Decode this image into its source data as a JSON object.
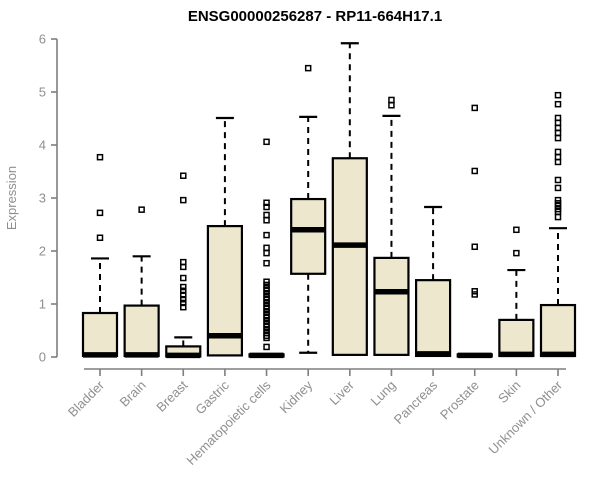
{
  "chart_data": {
    "type": "boxplot",
    "title": "ENSG00000256287 - RP11-664H17.1",
    "ylabel": "Expression",
    "xlabel": "",
    "ylim": [
      0,
      6
    ],
    "yticks": [
      0,
      1,
      2,
      3,
      4,
      5,
      6
    ],
    "grid": false,
    "legend": false,
    "categories": [
      "Bladder",
      "Brain",
      "Breast",
      "Gastric",
      "Hematopoietic cells",
      "Kidney",
      "Liver",
      "Lung",
      "Pancreas",
      "Prostate",
      "Skin",
      "Unknown / Other"
    ],
    "series": [
      {
        "category": "Bladder",
        "whisker_low": 0,
        "q1": 0.02,
        "median": 0.04,
        "q3": 0.83,
        "whisker_high": 1.86,
        "outliers": [
          2.25,
          2.72,
          3.77
        ]
      },
      {
        "category": "Brain",
        "whisker_low": 0,
        "q1": 0.02,
        "median": 0.04,
        "q3": 0.97,
        "whisker_high": 1.9,
        "outliers": [
          2.78
        ]
      },
      {
        "category": "Breast",
        "whisker_low": 0,
        "q1": 0.01,
        "median": 0.03,
        "q3": 0.2,
        "whisker_high": 0.37,
        "outliers": [
          0.94,
          1.02,
          1.09,
          1.17,
          1.25,
          1.32,
          1.49,
          1.7,
          1.79,
          2.96,
          3.42
        ]
      },
      {
        "category": "Gastric",
        "whisker_low": 0,
        "q1": 0.03,
        "median": 0.4,
        "q3": 2.47,
        "whisker_high": 4.51,
        "outliers": []
      },
      {
        "category": "Hematopoietic cells",
        "whisker_low": 0,
        "q1": 0.01,
        "median": 0.03,
        "q3": 0.05,
        "whisker_high": 0.06,
        "outliers": [
          0.19,
          0.36,
          0.4,
          0.45,
          0.51,
          0.57,
          0.62,
          0.68,
          0.74,
          0.79,
          0.85,
          0.91,
          0.96,
          1.02,
          1.08,
          1.13,
          1.19,
          1.25,
          1.3,
          1.36,
          1.42,
          1.77,
          1.96,
          2.06,
          2.3,
          2.58,
          2.68,
          2.83,
          2.91,
          4.06
        ]
      },
      {
        "category": "Kidney",
        "whisker_low": 0.08,
        "q1": 1.57,
        "median": 2.4,
        "q3": 2.98,
        "whisker_high": 4.53,
        "outliers": [
          5.45
        ]
      },
      {
        "category": "Liver",
        "whisker_low": 0.04,
        "q1": 0.04,
        "median": 2.11,
        "q3": 3.75,
        "whisker_high": 5.92,
        "outliers": []
      },
      {
        "category": "Lung",
        "whisker_low": 0,
        "q1": 0.04,
        "median": 1.23,
        "q3": 1.87,
        "whisker_high": 4.55,
        "outliers": [
          4.75,
          4.85
        ]
      },
      {
        "category": "Pancreas",
        "whisker_low": 0,
        "q1": 0.02,
        "median": 0.06,
        "q3": 1.45,
        "whisker_high": 2.83,
        "outliers": []
      },
      {
        "category": "Prostate",
        "whisker_low": 0,
        "q1": 0.01,
        "median": 0.03,
        "q3": 0.05,
        "whisker_high": 0.05,
        "outliers": [
          1.18,
          1.24,
          2.08,
          3.51,
          4.7
        ]
      },
      {
        "category": "Skin",
        "whisker_low": 0,
        "q1": 0.02,
        "median": 0.05,
        "q3": 0.7,
        "whisker_high": 1.64,
        "outliers": [
          1.96,
          2.4
        ]
      },
      {
        "category": "Unknown / Other",
        "whisker_low": 0,
        "q1": 0.02,
        "median": 0.05,
        "q3": 0.98,
        "whisker_high": 2.43,
        "outliers": [
          2.64,
          2.74,
          2.79,
          2.85,
          2.9,
          2.96,
          3.19,
          3.34,
          3.68,
          3.77,
          3.87,
          4.13,
          4.23,
          4.32,
          4.42,
          4.51,
          4.77,
          4.94
        ]
      }
    ],
    "style": {
      "box_fill": "#EDE7CD",
      "box_border": "#000000",
      "median_color": "#000000",
      "whisker_color": "#000000",
      "outlier_color": "#000000",
      "axis_color": "#7F7F7F",
      "tick_label_color": "#8F8F8F",
      "title_color": "#000000",
      "background": "#FFFFFF"
    }
  }
}
